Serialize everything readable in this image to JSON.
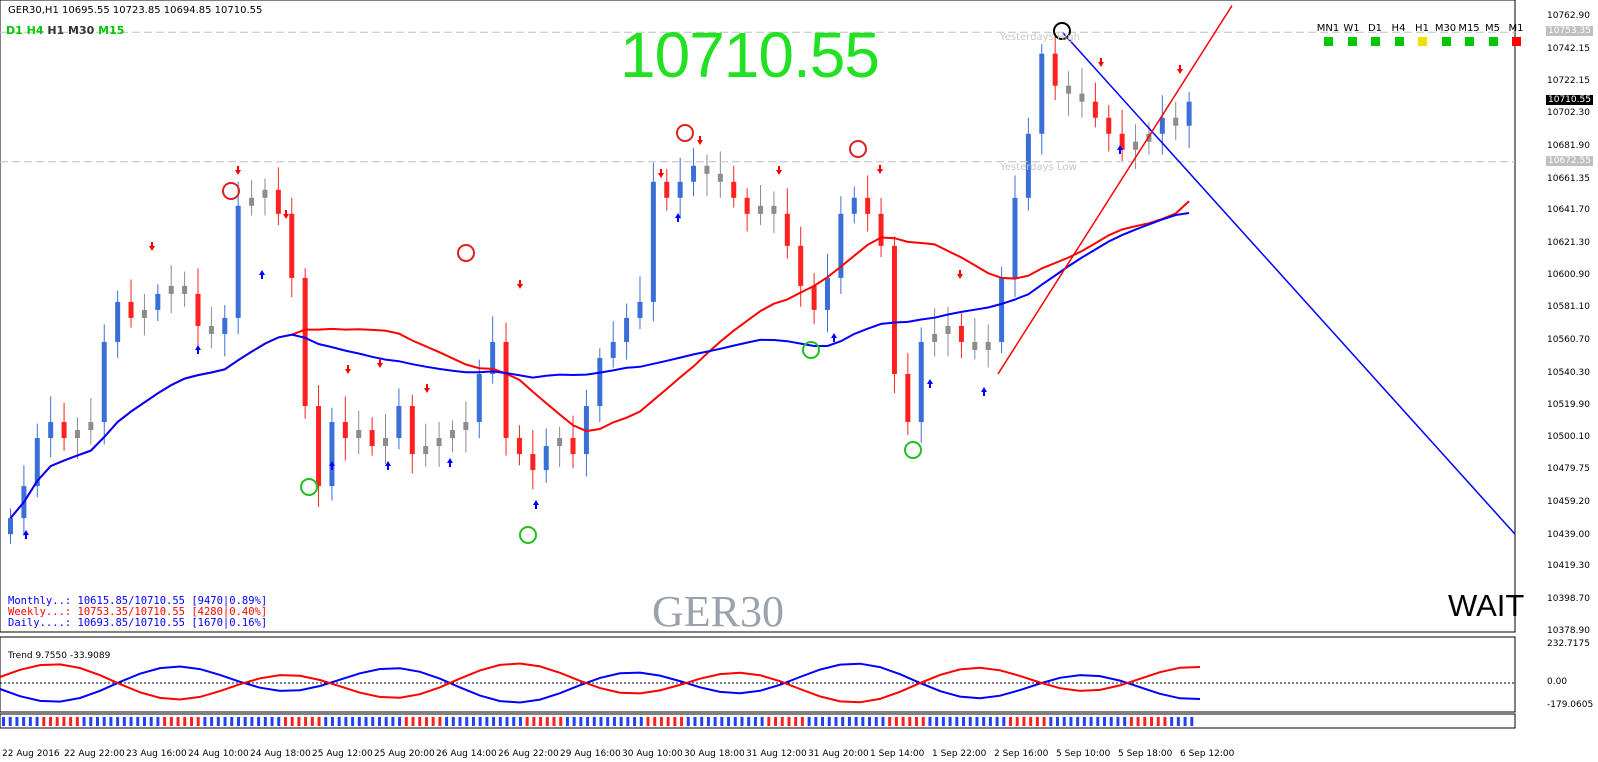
{
  "symbol_header": "GER30,H1  10695.55 10723.85 10694.85 10710.55",
  "timeframes": [
    "D1",
    "H4",
    "H1",
    "M30",
    "M15"
  ],
  "timeframe_colors": [
    "#00c800",
    "#00c800",
    "#333333",
    "#333333",
    "#00c800"
  ],
  "big_price": "10710.55",
  "symbol_watermark": "GER30",
  "signal_text": "WAIT",
  "stats": {
    "monthly": "Monthly..: 10615.85/10710.55 [9470|0.89%]",
    "weekly": "Weekly...: 10753.35/10710.55 [4280|0.40%]",
    "daily": "Daily....: 10693.85/10710.55 [1670|0.16%]"
  },
  "colors": {
    "monthly": "#0000ff",
    "weekly": "#ff0000",
    "daily": "#0000ff",
    "bull": "#3a6fd8",
    "bear": "#ff2020",
    "neutral": "#8c8c8c",
    "ma_red": "#ff0000",
    "ma_blue": "#0000ff"
  },
  "yesterday_high_label": "Yesterdays High",
  "yesterday_low_label": "Yesterdays Low",
  "y_axis_ticks": [
    "10762.90",
    "10742.15",
    "10722.15",
    "10702.30",
    "10681.90",
    "10661.35",
    "10641.70",
    "10621.30",
    "10600.90",
    "10581.10",
    "10560.70",
    "10540.30",
    "10519.90",
    "10500.10",
    "10479.75",
    "10459.20",
    "10439.00",
    "10419.30",
    "10398.70",
    "10378.90"
  ],
  "price_current_box": "10710.55",
  "yesterday_high_box": "10753.35",
  "yesterday_low_box": "10672.55",
  "x_axis_ticks": [
    "22 Aug 2016",
    "22 Aug 22:00",
    "23 Aug 16:00",
    "24 Aug 10:00",
    "24 Aug 18:00",
    "25 Aug 12:00",
    "25 Aug 20:00",
    "26 Aug 14:00",
    "26 Aug 22:00",
    "29 Aug 16:00",
    "30 Aug 10:00",
    "30 Aug 18:00",
    "31 Aug 12:00",
    "31 Aug 20:00",
    "1 Sep 14:00",
    "1 Sep 22:00",
    "2 Sep 16:00",
    "5 Sep 10:00",
    "5 Sep 18:00",
    "6 Sep 12:00"
  ],
  "trend_indicator_label": "Trend 9.7550 -33.9089",
  "indicator_axis": [
    "232.7175",
    "0.00",
    "-179.0605"
  ],
  "mtf_panel": {
    "labels": [
      "MN1",
      "W1",
      "D1",
      "H4",
      "H1",
      "M30",
      "M15",
      "M5",
      "M1"
    ],
    "colors": [
      "#00c800",
      "#00c800",
      "#00c800",
      "#00c800",
      "#f0e000",
      "#00c800",
      "#00c800",
      "#00c800",
      "#ff0000"
    ]
  },
  "chart_data": {
    "type": "candlestick",
    "symbol": "GER30",
    "timeframe": "H1",
    "ohlc_last": {
      "open": 10695.55,
      "high": 10723.85,
      "low": 10694.85,
      "close": 10710.55
    },
    "ylim": [
      10378.9,
      10762.9
    ],
    "yesterday_high": 10753.35,
    "yesterday_low": 10672.55,
    "close_series": [
      10450,
      10470,
      10500,
      10510,
      10500,
      10505,
      10510,
      10560,
      10585,
      10575,
      10580,
      10590,
      10595,
      10590,
      10570,
      10565,
      10575,
      10645,
      10650,
      10655,
      10640,
      10600,
      10520,
      10470,
      10510,
      10500,
      10505,
      10495,
      10500,
      10520,
      10490,
      10495,
      10500,
      10505,
      10510,
      10540,
      10560,
      10500,
      10490,
      10480,
      10495,
      10500,
      10490,
      10520,
      10550,
      10560,
      10575,
      10585,
      10660,
      10650,
      10660,
      10670,
      10665,
      10660,
      10650,
      10640,
      10645,
      10640,
      10620,
      10595,
      10580,
      10600,
      10640,
      10650,
      10640,
      10620,
      10540,
      10510,
      10560,
      10565,
      10570,
      10560,
      10555,
      10560,
      10600,
      10650,
      10690,
      10740,
      10720,
      10715,
      10710,
      10700,
      10690,
      10680,
      10685,
      10690,
      10700,
      10695,
      10710
    ]
  }
}
